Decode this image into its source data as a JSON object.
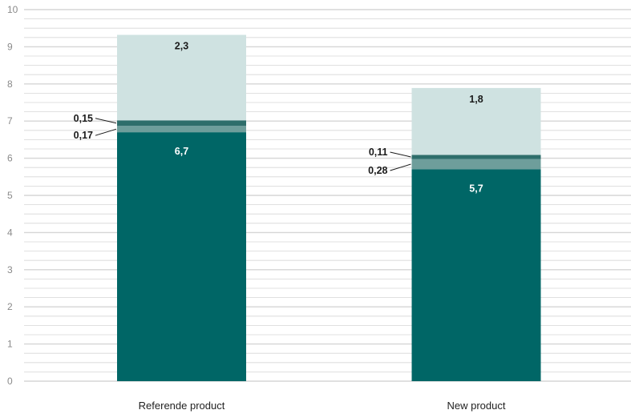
{
  "chart_data": {
    "type": "bar",
    "stacked": true,
    "categories": [
      "Referende product",
      "New product"
    ],
    "series": [
      {
        "values": [
          6.7,
          5.7
        ],
        "labels": [
          "6,7",
          "5,7"
        ],
        "color": "#006666",
        "label_color": "#ffffff"
      },
      {
        "values": [
          0.17,
          0.28
        ],
        "labels": [
          "0,17",
          "0,28"
        ],
        "color": "#6e9e9b",
        "label_color": "#1a1a1a",
        "label_position": "left-callout"
      },
      {
        "values": [
          0.15,
          0.11
        ],
        "labels": [
          "0,15",
          "0,11"
        ],
        "color": "#2e6e6b",
        "label_color": "#1a1a1a",
        "label_position": "left-callout"
      },
      {
        "values": [
          2.3,
          1.8
        ],
        "labels": [
          "2,3",
          "1,8"
        ],
        "color": "#cfe2e1",
        "label_color": "#1a1a1a"
      }
    ],
    "y_ticks": [
      "0",
      "1",
      "2",
      "3",
      "4",
      "5",
      "6",
      "7",
      "8",
      "9",
      "10"
    ],
    "ylim": [
      0,
      10
    ],
    "minor_gridlines_per_unit": 4,
    "grid": true,
    "title": "",
    "xlabel": "",
    "ylabel": "",
    "colors": {
      "grid": "#d6d6d6",
      "axis_text": "#8a8a8a",
      "category_text": "#222222"
    }
  }
}
